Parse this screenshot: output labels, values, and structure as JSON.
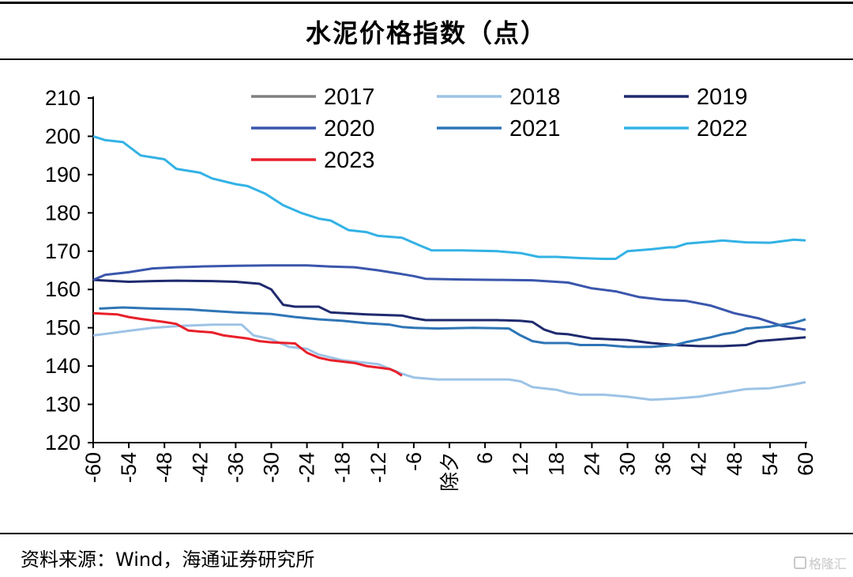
{
  "title": "水泥价格指数（点）",
  "source": "资料来源：Wind，海通证券研究所",
  "watermark": "格隆汇",
  "chart_data": {
    "type": "line",
    "title": "水泥价格指数（点）",
    "xlabel": "",
    "ylabel": "",
    "ylim": [
      120,
      210
    ],
    "yticks": [
      120,
      130,
      140,
      150,
      160,
      170,
      180,
      190,
      200,
      210
    ],
    "xlim": [
      -60,
      60
    ],
    "xticks": [
      "-60",
      "-54",
      "-48",
      "-42",
      "-36",
      "-30",
      "-24",
      "-18",
      "-12",
      "-6",
      "除夕",
      "6",
      "12",
      "18",
      "24",
      "30",
      "36",
      "42",
      "48",
      "54",
      "60"
    ],
    "legend_position": "top",
    "grid": false,
    "series": [
      {
        "name": "2017",
        "color": "#808080",
        "points": []
      },
      {
        "name": "2018",
        "color": "#9dc3e6",
        "points": [
          [
            -60,
            148
          ],
          [
            -55,
            149
          ],
          [
            -50,
            150
          ],
          [
            -45,
            150.5
          ],
          [
            -40,
            150.8
          ],
          [
            -35,
            150.8
          ],
          [
            -33,
            148
          ],
          [
            -30,
            147
          ],
          [
            -27,
            145
          ],
          [
            -24,
            144.5
          ],
          [
            -22,
            143
          ],
          [
            -18,
            141.5
          ],
          [
            -12,
            140.5
          ],
          [
            -8,
            138
          ],
          [
            -6,
            137
          ],
          [
            -2,
            136.5
          ],
          [
            4,
            136.5
          ],
          [
            10,
            136.5
          ],
          [
            12,
            136
          ],
          [
            14,
            134.5
          ],
          [
            18,
            133.8
          ],
          [
            20,
            133
          ],
          [
            22,
            132.5
          ],
          [
            26,
            132.5
          ],
          [
            30,
            132
          ],
          [
            34,
            131.2
          ],
          [
            38,
            131.5
          ],
          [
            42,
            132
          ],
          [
            46,
            133
          ],
          [
            50,
            134
          ],
          [
            54,
            134.2
          ],
          [
            58,
            135.2
          ],
          [
            60,
            135.8
          ]
        ]
      },
      {
        "name": "2019",
        "color": "#1f2a6e",
        "points": [
          [
            -60,
            162.5
          ],
          [
            -54,
            162
          ],
          [
            -50,
            162.2
          ],
          [
            -46,
            162.3
          ],
          [
            -40,
            162.2
          ],
          [
            -36,
            162
          ],
          [
            -32,
            161.5
          ],
          [
            -30,
            160
          ],
          [
            -28,
            156
          ],
          [
            -26,
            155.5
          ],
          [
            -22,
            155.5
          ],
          [
            -20,
            154
          ],
          [
            -14,
            153.5
          ],
          [
            -8,
            153.2
          ],
          [
            -6,
            152.5
          ],
          [
            -4,
            152
          ],
          [
            2,
            152
          ],
          [
            8,
            152
          ],
          [
            12,
            151.8
          ],
          [
            14,
            151.5
          ],
          [
            16,
            149.5
          ],
          [
            18,
            148.5
          ],
          [
            20,
            148.3
          ],
          [
            24,
            147.2
          ],
          [
            30,
            146.8
          ],
          [
            34,
            146
          ],
          [
            38,
            145.5
          ],
          [
            42,
            145.2
          ],
          [
            46,
            145.2
          ],
          [
            50,
            145.5
          ],
          [
            52,
            146.5
          ],
          [
            56,
            147
          ],
          [
            60,
            147.5
          ]
        ]
      },
      {
        "name": "2020",
        "color": "#3a56ac",
        "points": [
          [
            -60,
            162.5
          ],
          [
            -58,
            163.8
          ],
          [
            -54,
            164.5
          ],
          [
            -50,
            165.5
          ],
          [
            -46,
            165.8
          ],
          [
            -42,
            166
          ],
          [
            -36,
            166.2
          ],
          [
            -30,
            166.3
          ],
          [
            -24,
            166.3
          ],
          [
            -20,
            166
          ],
          [
            -16,
            165.8
          ],
          [
            -12,
            165
          ],
          [
            -8,
            164
          ],
          [
            -6,
            163.5
          ],
          [
            -4,
            162.8
          ],
          [
            2,
            162.6
          ],
          [
            8,
            162.5
          ],
          [
            14,
            162.4
          ],
          [
            20,
            161.8
          ],
          [
            24,
            160.3
          ],
          [
            28,
            159.5
          ],
          [
            32,
            158
          ],
          [
            36,
            157.3
          ],
          [
            40,
            157
          ],
          [
            44,
            155.8
          ],
          [
            48,
            153.8
          ],
          [
            52,
            152.5
          ],
          [
            56,
            150.5
          ],
          [
            60,
            149.5
          ]
        ]
      },
      {
        "name": "2021",
        "color": "#2e75b6",
        "points": [
          [
            -59,
            155
          ],
          [
            -55,
            155.3
          ],
          [
            -50,
            155
          ],
          [
            -44,
            154.8
          ],
          [
            -40,
            154.4
          ],
          [
            -36,
            154
          ],
          [
            -30,
            153.6
          ],
          [
            -26,
            152.8
          ],
          [
            -22,
            152.2
          ],
          [
            -18,
            151.8
          ],
          [
            -14,
            151.2
          ],
          [
            -10,
            150.8
          ],
          [
            -8,
            150.2
          ],
          [
            -6,
            150
          ],
          [
            -2,
            149.8
          ],
          [
            4,
            150
          ],
          [
            10,
            149.8
          ],
          [
            12,
            148
          ],
          [
            14,
            146.5
          ],
          [
            16,
            146
          ],
          [
            20,
            146
          ],
          [
            22,
            145.5
          ],
          [
            26,
            145.5
          ],
          [
            30,
            145
          ],
          [
            34,
            145
          ],
          [
            38,
            145.5
          ],
          [
            40,
            146.3
          ],
          [
            44,
            147.5
          ],
          [
            46,
            148.3
          ],
          [
            48,
            148.8
          ],
          [
            50,
            149.8
          ],
          [
            54,
            150.3
          ],
          [
            56,
            150.8
          ],
          [
            58,
            151.3
          ],
          [
            60,
            152.2
          ]
        ]
      },
      {
        "name": "2022",
        "color": "#33b2e5",
        "points": [
          [
            -60,
            200
          ],
          [
            -58,
            199
          ],
          [
            -55,
            198.5
          ],
          [
            -52,
            195
          ],
          [
            -50,
            194.5
          ],
          [
            -48,
            194
          ],
          [
            -46,
            191.5
          ],
          [
            -42,
            190.5
          ],
          [
            -40,
            189
          ],
          [
            -36,
            187.5
          ],
          [
            -34,
            187
          ],
          [
            -31,
            185
          ],
          [
            -28,
            182
          ],
          [
            -25,
            180
          ],
          [
            -22,
            178.5
          ],
          [
            -20,
            178
          ],
          [
            -17,
            175.5
          ],
          [
            -14,
            175
          ],
          [
            -12,
            174
          ],
          [
            -8,
            173.5
          ],
          [
            -5,
            171.5
          ],
          [
            -3,
            170.2
          ],
          [
            2,
            170.2
          ],
          [
            8,
            170
          ],
          [
            12,
            169.5
          ],
          [
            15,
            168.5
          ],
          [
            18,
            168.5
          ],
          [
            22,
            168.2
          ],
          [
            26,
            168
          ],
          [
            28,
            168
          ],
          [
            30,
            170
          ],
          [
            34,
            170.5
          ],
          [
            37,
            171
          ],
          [
            38,
            171
          ],
          [
            40,
            172
          ],
          [
            44,
            172.5
          ],
          [
            46,
            172.8
          ],
          [
            50,
            172.3
          ],
          [
            54,
            172.2
          ],
          [
            58,
            173
          ],
          [
            60,
            172.8
          ]
        ]
      },
      {
        "name": "2023",
        "color": "#e8202a",
        "points": [
          [
            -60,
            153.8
          ],
          [
            -56,
            153.5
          ],
          [
            -54,
            152.8
          ],
          [
            -52,
            152.3
          ],
          [
            -48,
            151.5
          ],
          [
            -46,
            151
          ],
          [
            -44,
            149.3
          ],
          [
            -42,
            149
          ],
          [
            -40,
            148.8
          ],
          [
            -38,
            148
          ],
          [
            -34,
            147.2
          ],
          [
            -32,
            146.5
          ],
          [
            -30,
            146.2
          ],
          [
            -26,
            145.9
          ],
          [
            -24,
            143.5
          ],
          [
            -22,
            142.2
          ],
          [
            -20,
            141.5
          ],
          [
            -16,
            140.8
          ],
          [
            -14,
            140
          ],
          [
            -12,
            139.6
          ],
          [
            -10,
            139.2
          ],
          [
            -9,
            138.5
          ],
          [
            -8,
            137.5
          ]
        ]
      }
    ]
  }
}
